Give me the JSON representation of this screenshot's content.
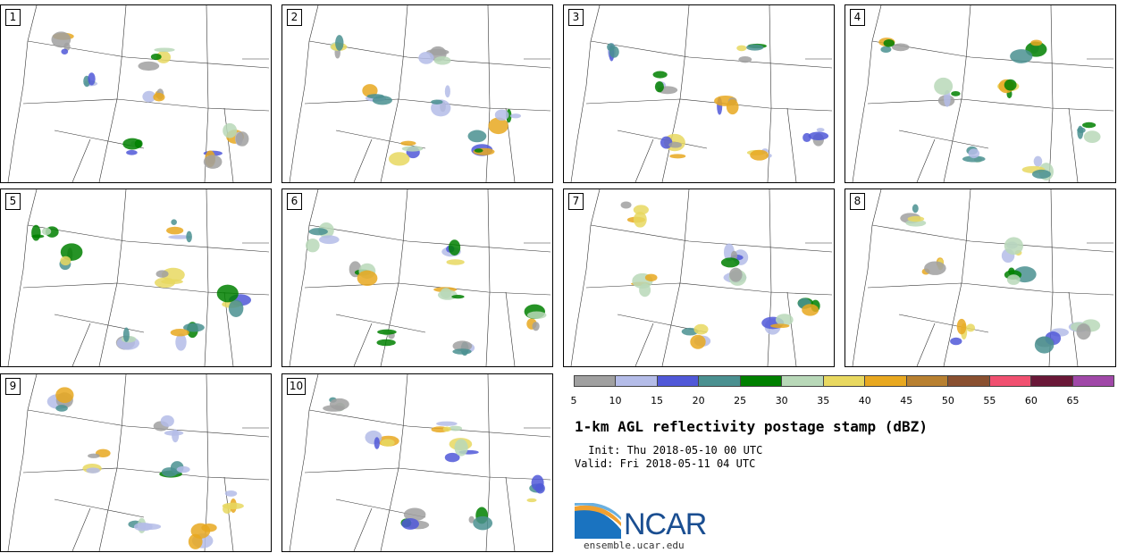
{
  "panels": [
    {
      "label": "1"
    },
    {
      "label": "2"
    },
    {
      "label": "3"
    },
    {
      "label": "4"
    },
    {
      "label": "5"
    },
    {
      "label": "6"
    },
    {
      "label": "7"
    },
    {
      "label": "8"
    },
    {
      "label": "9"
    },
    {
      "label": "10"
    }
  ],
  "colorbar": {
    "colors": [
      "#a0a0a0",
      "#b4bce8",
      "#5058d8",
      "#4a9090",
      "#008000",
      "#b8d8b8",
      "#e8d860",
      "#e8a820",
      "#b88030",
      "#8a5030",
      "#f05070",
      "#6a1838",
      "#a048a8"
    ],
    "ticks": [
      "5",
      "10",
      "15",
      "20",
      "25",
      "30",
      "35",
      "40",
      "45",
      "50",
      "55",
      "60",
      "65"
    ]
  },
  "title": "1-km AGL reflectivity postage stamp (dBZ)",
  "init": " Init: Thu 2018-05-10 00 UTC",
  "valid": "Valid: Fri 2018-05-11 04 UTC",
  "logo": {
    "text": "NCAR",
    "url": "ensemble.ucar.edu"
  }
}
